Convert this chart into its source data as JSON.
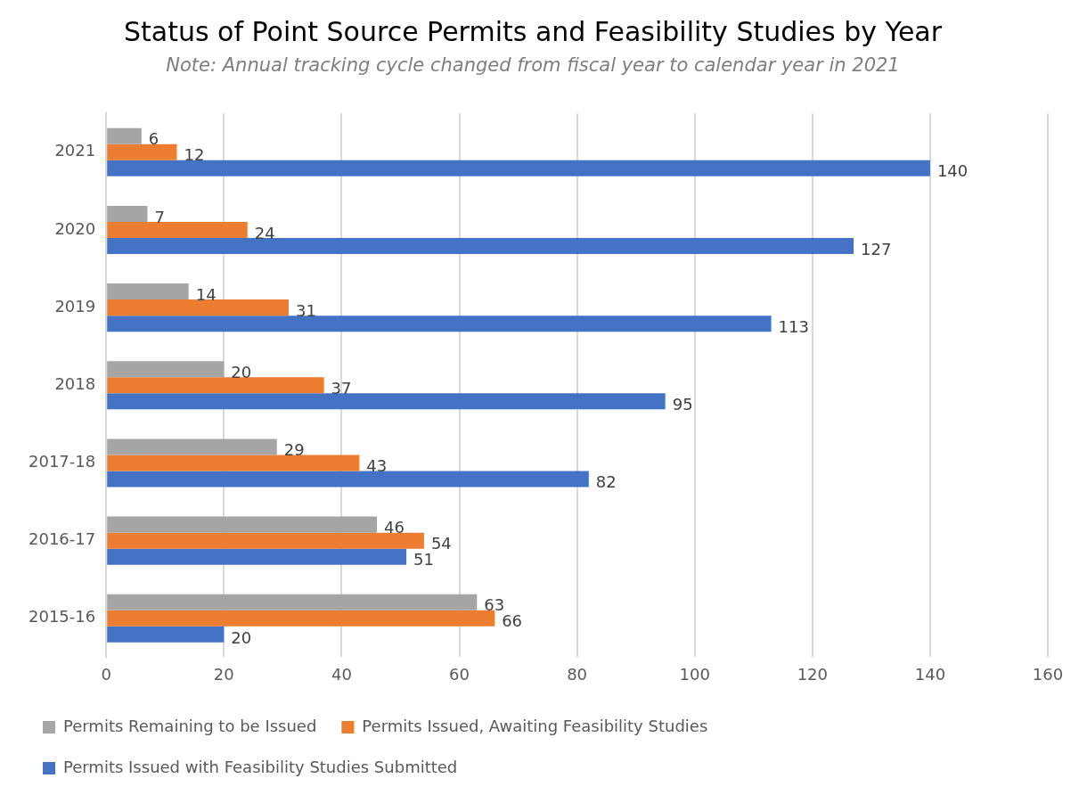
{
  "chart_data": {
    "type": "bar",
    "orientation": "horizontal",
    "title": "Status of Point Source Permits and Feasibility Studies by Year",
    "subtitle": "Note: Annual tracking cycle changed from fiscal year to calendar year in 2021",
    "categories": [
      "2021",
      "2020",
      "2019",
      "2018",
      "2017-18",
      "2016-17",
      "2015-16"
    ],
    "series": [
      {
        "name": "Permits Remaining to be Issued",
        "color": "#a5a5a5",
        "values": [
          6,
          7,
          14,
          20,
          29,
          46,
          63
        ]
      },
      {
        "name": "Permits Issued, Awaiting Feasibility Studies",
        "color": "#ed7d31",
        "values": [
          12,
          24,
          31,
          37,
          43,
          54,
          66
        ]
      },
      {
        "name": "Permits Issued with Feasibility Studies Submitted",
        "color": "#4472c4",
        "values": [
          140,
          127,
          113,
          95,
          82,
          51,
          20
        ]
      }
    ],
    "xlim": [
      0,
      160
    ],
    "xticks": [
      0,
      20,
      40,
      60,
      80,
      100,
      120,
      140,
      160
    ],
    "grid": "x",
    "legend": "bottom",
    "data_labels": true
  }
}
